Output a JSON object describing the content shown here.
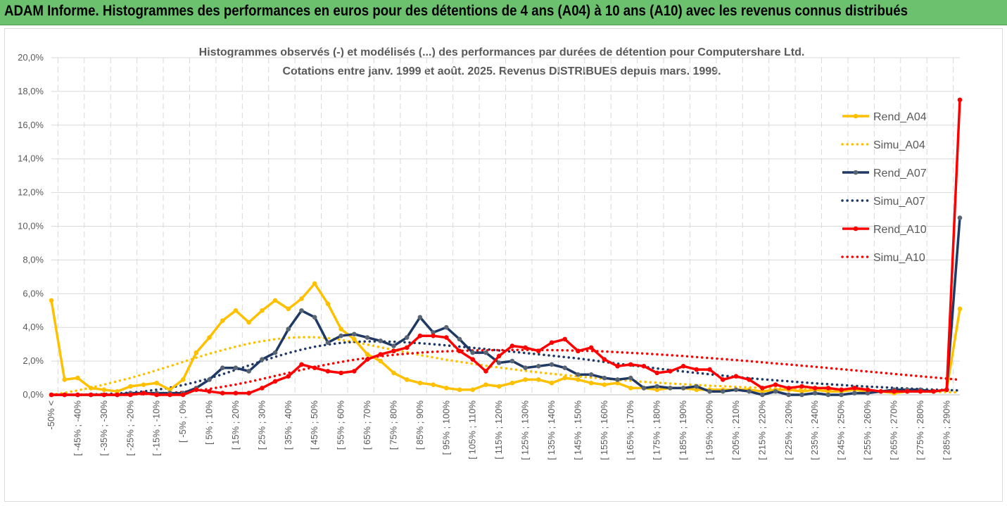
{
  "header": {
    "title": "ADAM Informe. Histogrammes des performances en euros pour des détentions de 4 ans (A04) à 10 ans (A10) avec les revenus connus distribués"
  },
  "colors": {
    "header_bg": "#6cc16e",
    "a04": "#ffc000",
    "a07": "#1f3864",
    "a10": "#ff0000",
    "grid": "#d9d9d9",
    "text": "#595959"
  },
  "chart_data": {
    "type": "line",
    "title": "Histogrammes observés (-) et modélisés (...) des performances par durées de détention pour Computershare Ltd.",
    "subtitle": "Cotations entre janv. 1999 et août. 2025. Revenus DISTRIBUES depuis mars. 1999.",
    "xlabel": "",
    "ylabel": "",
    "ylim": [
      0,
      20
    ],
    "yticks": [
      "0,0%",
      "2,0%",
      "4,0%",
      "6,0%",
      "8,0%",
      "10,0%",
      "12,0%",
      "14,0%",
      "16,0%",
      "18,0%",
      "20,0%"
    ],
    "x_tick_labels": [
      "-50% <",
      "[ -45% ; -40%",
      "[ -35% ; -30%",
      "[ -25% ; -20%",
      "[ -15% ; -10%",
      "[ -5% ; 0%",
      "[ 5% ; 10%",
      "[ 15% ; 20%",
      "[ 25% ; 30%",
      "[ 35% ; 40%",
      "[ 45% ; 50%",
      "[ 55% ; 60%",
      "[ 65% ; 70%",
      "[ 75% ; 80%",
      "[ 85% ; 90%",
      "[ 95% ; 100%",
      "[ 105% ; 110%",
      "[ 115% ; 120%",
      "[ 125% ; 130%",
      "[ 135% ; 140%",
      "[ 145% ; 150%",
      "[ 155% ; 160%",
      "[ 165% ; 170%",
      "[ 175% ; 180%",
      "[ 185% ; 190%",
      "[ 195% ; 200%",
      "[ 205% ; 210%",
      "[ 215% ; 220%",
      "[ 225% ; 230%",
      "[ 235% ; 240%",
      "[ 245% ; 250%",
      "[ 255% ; 260%",
      "[ 265% ; 270%",
      "[ 275% ; 280%",
      "[ 285% ; 290%"
    ],
    "grid": true,
    "legend_position": "right",
    "categories_count": 70,
    "series": [
      {
        "name": "Rend_A04",
        "style": "solid",
        "color": "#ffc000",
        "values": [
          5.6,
          0.9,
          1.0,
          0.4,
          0.3,
          0.2,
          0.5,
          0.6,
          0.7,
          0.3,
          0.9,
          2.5,
          3.4,
          4.4,
          5.0,
          4.3,
          5.0,
          5.6,
          5.1,
          5.7,
          6.6,
          5.4,
          3.9,
          3.3,
          2.4,
          2.0,
          1.3,
          0.9,
          0.7,
          0.6,
          0.4,
          0.3,
          0.3,
          0.6,
          0.5,
          0.7,
          0.9,
          0.9,
          0.7,
          1.0,
          0.9,
          0.7,
          0.6,
          0.7,
          0.4,
          0.4,
          0.3,
          0.4,
          0.4,
          0.3,
          0.3,
          0.3,
          0.3,
          0.3,
          0.2,
          0.3,
          0.3,
          0.2,
          0.3,
          0.2,
          0.2,
          0.3,
          0.2,
          0.2,
          0.1,
          0.2,
          0.2,
          0.2,
          0.3,
          5.1
        ]
      },
      {
        "name": "Simu_A04",
        "style": "dotted",
        "color": "#ffc000",
        "values": [
          0.0,
          0.12,
          0.26,
          0.42,
          0.6,
          0.8,
          1.0,
          1.22,
          1.46,
          1.7,
          1.95,
          2.2,
          2.44,
          2.65,
          2.85,
          3.04,
          3.18,
          3.3,
          3.38,
          3.42,
          3.42,
          3.36,
          3.26,
          3.13,
          2.98,
          2.82,
          2.66,
          2.52,
          2.36,
          2.22,
          2.08,
          1.96,
          1.84,
          1.72,
          1.62,
          1.52,
          1.42,
          1.33,
          1.25,
          1.17,
          1.09,
          1.02,
          0.95,
          0.89,
          0.83,
          0.77,
          0.72,
          0.67,
          0.63,
          0.58,
          0.54,
          0.51,
          0.47,
          0.44,
          0.41,
          0.38,
          0.36,
          0.33,
          0.31,
          0.29,
          0.27,
          0.25,
          0.24,
          0.22,
          0.2,
          0.19,
          0.18,
          0.17,
          0.16,
          0.15
        ]
      },
      {
        "name": "Rend_A07",
        "style": "solid",
        "color": "#1f3864",
        "values": [
          0.0,
          0.0,
          0.0,
          0.0,
          0.0,
          0.0,
          0.1,
          0.1,
          0.1,
          0.1,
          0.1,
          0.4,
          0.9,
          1.6,
          1.6,
          1.4,
          2.1,
          2.5,
          3.9,
          5.0,
          4.6,
          3.1,
          3.5,
          3.6,
          3.4,
          3.2,
          2.9,
          3.4,
          4.6,
          3.7,
          4.0,
          3.3,
          2.5,
          2.5,
          1.9,
          2.0,
          1.6,
          1.7,
          1.8,
          1.6,
          1.2,
          1.2,
          1.0,
          0.9,
          1.0,
          0.4,
          0.5,
          0.4,
          0.4,
          0.5,
          0.2,
          0.2,
          0.3,
          0.2,
          0.0,
          0.2,
          0.0,
          0.0,
          0.1,
          0.0,
          0.0,
          0.1,
          0.1,
          0.2,
          0.3,
          0.3,
          0.3,
          0.2,
          0.3,
          10.5
        ]
      },
      {
        "name": "Simu_A07",
        "style": "dotted",
        "color": "#1f3864",
        "values": [
          0.0,
          0.0,
          0.01,
          0.02,
          0.04,
          0.08,
          0.13,
          0.2,
          0.3,
          0.42,
          0.58,
          0.76,
          0.98,
          1.22,
          1.48,
          1.74,
          2.0,
          2.25,
          2.48,
          2.68,
          2.85,
          2.98,
          3.08,
          3.14,
          3.17,
          3.17,
          3.15,
          3.11,
          3.06,
          3.0,
          2.93,
          2.86,
          2.79,
          2.71,
          2.63,
          2.56,
          2.48,
          2.4,
          2.32,
          2.24,
          2.16,
          2.06,
          1.95,
          1.85,
          1.75,
          1.66,
          1.56,
          1.47,
          1.38,
          1.3,
          1.22,
          1.14,
          1.06,
          0.99,
          0.92,
          0.86,
          0.8,
          0.74,
          0.68,
          0.63,
          0.58,
          0.53,
          0.49,
          0.45,
          0.41,
          0.38,
          0.34,
          0.31,
          0.28,
          0.26
        ]
      },
      {
        "name": "Rend_A10",
        "style": "solid",
        "color": "#ff0000",
        "values": [
          0.0,
          0.0,
          0.0,
          0.0,
          0.0,
          0.0,
          0.0,
          0.1,
          0.0,
          0.0,
          0.0,
          0.3,
          0.2,
          0.1,
          0.1,
          0.1,
          0.4,
          0.8,
          1.1,
          1.8,
          1.6,
          1.4,
          1.3,
          1.4,
          2.1,
          2.4,
          2.6,
          2.8,
          3.5,
          3.5,
          3.4,
          2.6,
          2.1,
          1.4,
          2.3,
          2.9,
          2.8,
          2.6,
          3.1,
          3.3,
          2.6,
          2.8,
          2.1,
          1.7,
          1.8,
          1.7,
          1.3,
          1.4,
          1.7,
          1.5,
          1.5,
          0.9,
          1.1,
          0.9,
          0.4,
          0.6,
          0.4,
          0.5,
          0.4,
          0.4,
          0.3,
          0.4,
          0.3,
          0.2,
          0.2,
          0.2,
          0.2,
          0.2,
          0.3,
          17.5
        ]
      },
      {
        "name": "Simu_A10",
        "style": "dotted",
        "color": "#ff0000",
        "values": [
          0.0,
          0.0,
          0.0,
          0.0,
          0.0,
          0.01,
          0.02,
          0.04,
          0.07,
          0.11,
          0.17,
          0.25,
          0.35,
          0.47,
          0.61,
          0.77,
          0.94,
          1.12,
          1.3,
          1.48,
          1.65,
          1.81,
          1.95,
          2.08,
          2.19,
          2.29,
          2.37,
          2.44,
          2.5,
          2.55,
          2.58,
          2.61,
          2.63,
          2.64,
          2.65,
          2.66,
          2.66,
          2.66,
          2.65,
          2.64,
          2.62,
          2.6,
          2.57,
          2.53,
          2.49,
          2.45,
          2.4,
          2.35,
          2.3,
          2.24,
          2.18,
          2.12,
          2.06,
          2.0,
          1.93,
          1.86,
          1.8,
          1.73,
          1.66,
          1.59,
          1.52,
          1.45,
          1.38,
          1.31,
          1.24,
          1.17,
          1.1,
          1.03,
          0.96,
          0.89
        ]
      }
    ]
  }
}
